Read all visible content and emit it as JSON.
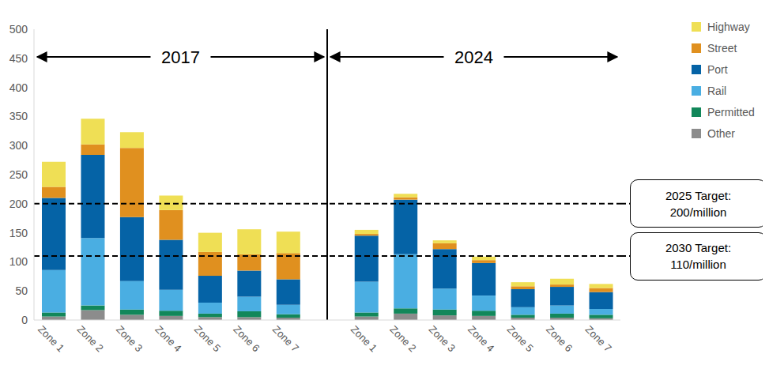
{
  "chart_data": {
    "type": "bar",
    "stacked": true,
    "grid": false,
    "categories": [
      "Zone 1",
      "Zone 2",
      "Zone 3",
      "Zone 4",
      "Zone 5",
      "Zone 6",
      "Zone 7",
      null,
      "Zone 1",
      "Zone 2",
      "Zone 3",
      "Zone 4",
      "Zone 5",
      "Zone 6",
      "Zone 7"
    ],
    "periods": [
      "2017",
      "2024"
    ],
    "series": [
      {
        "name": "Other",
        "color": "#8c8c8c",
        "values": [
          6,
          17,
          9,
          7,
          5,
          5,
          4,
          null,
          6,
          11,
          8,
          7,
          4,
          4,
          3
        ]
      },
      {
        "name": "Permitted",
        "color": "#12875a",
        "values": [
          7,
          8,
          9,
          9,
          6,
          10,
          6,
          null,
          7,
          9,
          10,
          9,
          5,
          7,
          6
        ]
      },
      {
        "name": "Rail",
        "color": "#4aaee2",
        "values": [
          73,
          116,
          49,
          36,
          19,
          25,
          16,
          null,
          53,
          93,
          36,
          26,
          13,
          14,
          10
        ]
      },
      {
        "name": "Port",
        "color": "#0563a6",
        "values": [
          124,
          143,
          110,
          86,
          46,
          45,
          44,
          null,
          79,
          94,
          68,
          56,
          31,
          32,
          29
        ]
      },
      {
        "name": "Street",
        "color": "#e0901f",
        "values": [
          19,
          18,
          119,
          51,
          41,
          28,
          45,
          null,
          3,
          4,
          10,
          5,
          5,
          4,
          7
        ]
      },
      {
        "name": "Highway",
        "color": "#efdf55",
        "values": [
          43,
          44,
          27,
          25,
          33,
          43,
          37,
          null,
          7,
          6,
          5,
          6,
          7,
          10,
          7
        ]
      }
    ],
    "ylim": [
      0,
      500
    ],
    "yticks": [
      0,
      50,
      100,
      150,
      200,
      250,
      300,
      350,
      400,
      450,
      500
    ],
    "legend": "upper right",
    "reference_lines": [
      {
        "y": 200,
        "label": [
          "2025 Target:",
          "200/million"
        ]
      },
      {
        "y": 110,
        "label": [
          "2030 Target:",
          "110/million"
        ]
      }
    ]
  }
}
